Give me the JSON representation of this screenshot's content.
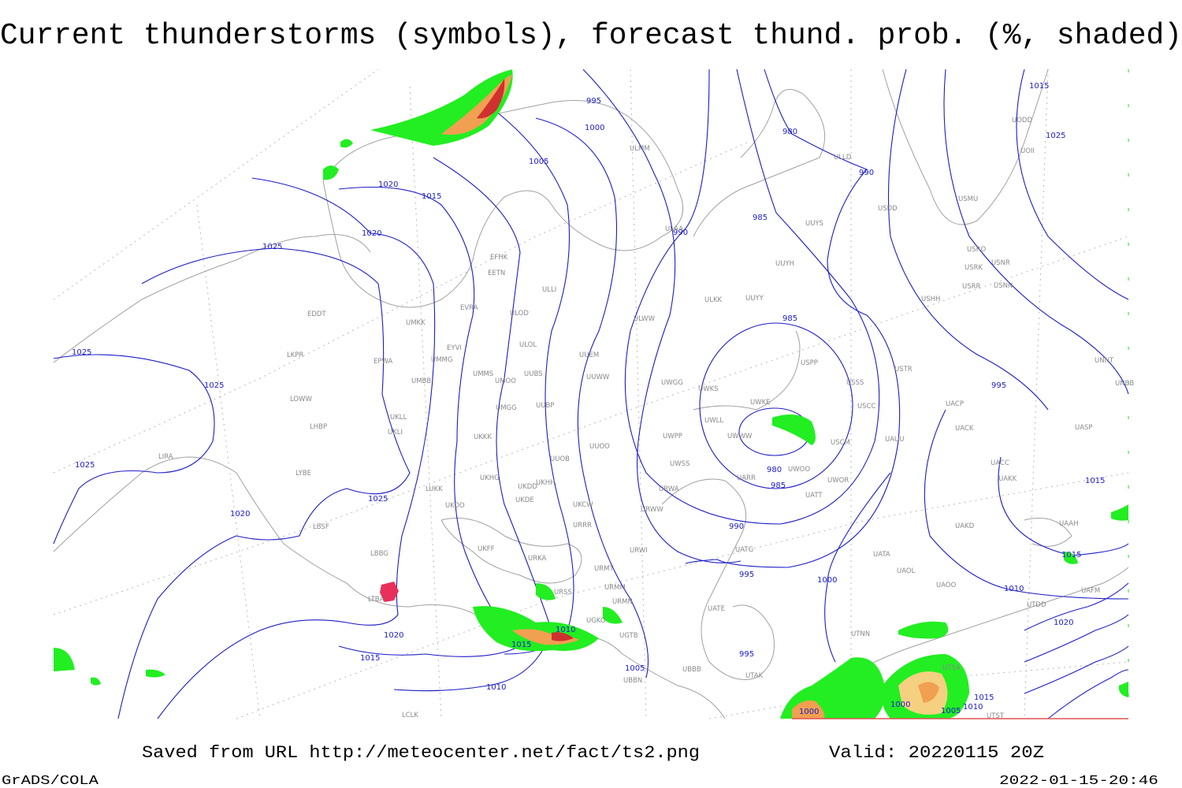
{
  "title": "Current thunderstorms (symbols), forecast thund. prob. (%, shaded)",
  "footer": {
    "saved": "Saved from URL http://meteocenter.net/fact/ts2.png",
    "valid": "Valid: 20220115 20Z",
    "software": "GrADS/COLA",
    "timestamp": "2022-01-15-20:46"
  },
  "isobar_labels": [
    "995",
    "1000",
    "1005",
    "1020",
    "1015",
    "1020",
    "1025",
    "1025",
    "1025",
    "1025",
    "1025",
    "1020",
    "1020",
    "1015",
    "1015",
    "1010",
    "1010",
    "1005",
    "980",
    "990",
    "985",
    "990",
    "985",
    "980",
    "985",
    "990",
    "995",
    "1000",
    "995",
    "995",
    "1015",
    "1025",
    "1015",
    "1015",
    "1010",
    "1020",
    "1000",
    "1000",
    "1005",
    "1010",
    "1015"
  ],
  "stations": [
    "EFHK",
    "EETN",
    "ULLI",
    "EVRA",
    "ULOD",
    "UMKK",
    "EDDT",
    "EYVI",
    "ULOL",
    "UUEM",
    "UMMG",
    "EPWA",
    "LKPR",
    "UMMS",
    "UMOO",
    "UUBS",
    "UUWW",
    "UMBB",
    "LOWW",
    "UKLL",
    "UMGG",
    "UUBP",
    "LHBP",
    "UKLI",
    "UKKK",
    "UUOO",
    "LIRA",
    "LYBE",
    "UUOB",
    "UKHH",
    "UKHG",
    "UKDD",
    "LUKK",
    "UKOO",
    "UKDE",
    "UKCW",
    "LBSF",
    "URRR",
    "LBBG",
    "UKFF",
    "URKA",
    "URMT",
    "LTBA",
    "URSS",
    "URMM",
    "URMN",
    "UGKO",
    "UGTB",
    "UBBB",
    "UBBN",
    "ULMM",
    "ULAA",
    "ULLD",
    "UUYS",
    "UUYH",
    "ULKK",
    "UUYY",
    "ULWW",
    "UWGG",
    "UWKS",
    "USPP",
    "USSS",
    "UWKE",
    "UWLL",
    "USCC",
    "UWWW",
    "UWPP",
    "USCM",
    "UAUU",
    "UWSS",
    "UWOO",
    "UARR",
    "UWOR",
    "URWA",
    "UATT",
    "URWW",
    "URWI",
    "UATG",
    "UATE",
    "UTAK",
    "UTNN",
    "UATA",
    "UAOL",
    "UAOO",
    "UAKD",
    "UACC",
    "UAKK",
    "UACK",
    "UACP",
    "USTR",
    "USHH",
    "USRR",
    "USNN",
    "USRK",
    "USRO",
    "USNR",
    "USDD",
    "USMU",
    "UNNT",
    "UNBB",
    "UASP",
    "UAAH",
    "UAFM",
    "UTDD",
    "UTSA",
    "UTST",
    "LCLK",
    "UODD",
    "UOII"
  ]
}
